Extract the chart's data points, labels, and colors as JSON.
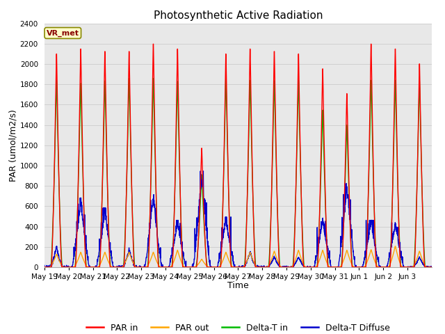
{
  "title": "Photosynthetic Active Radiation",
  "xlabel": "Time",
  "ylabel": "PAR (umol/m2/s)",
  "ylim": [
    0,
    2400
  ],
  "yticks": [
    0,
    200,
    400,
    600,
    800,
    1000,
    1200,
    1400,
    1600,
    1800,
    2000,
    2200,
    2400
  ],
  "plot_bg": "#e8e8e8",
  "fig_bg": "#ffffff",
  "legend_labels": [
    "PAR in",
    "PAR out",
    "Delta-T in",
    "Delta-T Diffuse"
  ],
  "legend_colors": [
    "#ff0000",
    "#ffa500",
    "#00bb00",
    "#0000cc"
  ],
  "annotation_text": "VR_met",
  "annotation_color": "#880000",
  "annotation_bg": "#ffffcc",
  "annotation_border": "#888800",
  "days": [
    "May 19",
    "May 20",
    "May 21",
    "May 22",
    "May 23",
    "May 24",
    "May 25",
    "May 26",
    "May 27",
    "May 28",
    "May 29",
    "May 30",
    "May 31",
    "Jun 1",
    "Jun 2",
    "Jun 3"
  ],
  "n_per_day": 144,
  "par_in_peaks": [
    2150,
    2200,
    2175,
    2175,
    2250,
    2200,
    1200,
    2150,
    2200,
    2175,
    2150,
    2000,
    1750,
    2250,
    2200,
    2050
  ],
  "par_out_peaks": [
    130,
    150,
    150,
    150,
    150,
    170,
    80,
    150,
    150,
    160,
    170,
    170,
    170,
    175,
    210,
    160
  ],
  "delta_t_in_peaks": [
    1880,
    1850,
    1875,
    1900,
    1900,
    1870,
    930,
    1900,
    1880,
    1875,
    1880,
    1580,
    1430,
    1880,
    1880,
    1870
  ],
  "delta_t_diff_peaks": [
    200,
    620,
    530,
    175,
    650,
    420,
    860,
    450,
    150,
    100,
    100,
    440,
    750,
    420,
    400,
    100
  ],
  "diff_noisy_days": [
    1,
    2,
    4,
    5,
    6,
    7,
    11,
    12,
    13,
    14
  ],
  "grid_color": "#cccccc",
  "tick_fontsize": 7.5,
  "linewidth": 1.0
}
